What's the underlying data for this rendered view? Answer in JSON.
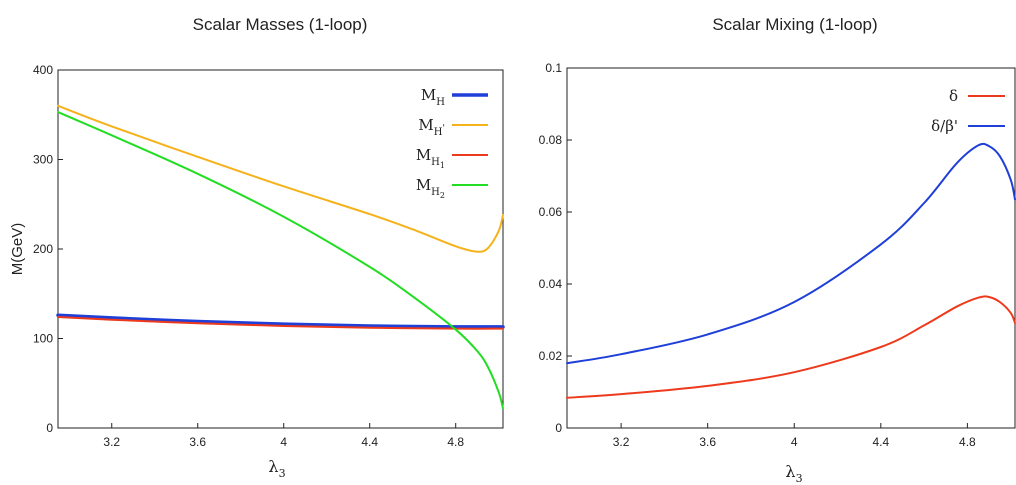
{
  "chart_data": [
    {
      "type": "line",
      "title": "Scalar Masses (1-loop)",
      "xlabel": "λ",
      "xlabel_sub": "3",
      "ylabel": "M(GeV)",
      "xlim": [
        2.95,
        5.02
      ],
      "ylim": [
        0,
        400
      ],
      "xticks": [
        {
          "v": 3.2,
          "label": "3.2"
        },
        {
          "v": 3.6,
          "label": "3.6"
        },
        {
          "v": 4.0,
          "label": "4"
        },
        {
          "v": 4.4,
          "label": "4.4"
        },
        {
          "v": 4.8,
          "label": "4.8"
        }
      ],
      "yticks": [
        {
          "v": 0,
          "label": "0"
        },
        {
          "v": 100,
          "label": "100"
        },
        {
          "v": 200,
          "label": "200"
        },
        {
          "v": 300,
          "label": "300"
        },
        {
          "v": 400,
          "label": "400"
        }
      ],
      "legend_position": "top-right",
      "series": [
        {
          "name": "M",
          "sub": "H",
          "sup": "",
          "subsub": "",
          "color": "#1f3fd9",
          "width": 3.5,
          "x": [
            2.95,
            3.2,
            3.6,
            4.0,
            4.4,
            4.8,
            5.02
          ],
          "y": [
            126,
            123,
            119,
            116,
            114,
            113,
            113
          ]
        },
        {
          "name": "M",
          "sub": "H",
          "sup": "'",
          "subsub": "",
          "color": "#f5b21b",
          "width": 2,
          "x": [
            2.95,
            3.2,
            3.6,
            4.0,
            4.4,
            4.6,
            4.8,
            4.9,
            4.95,
            5.0,
            5.02
          ],
          "y": [
            360,
            337,
            303,
            270,
            239,
            222,
            203,
            197,
            201,
            220,
            238
          ]
        },
        {
          "name": "M",
          "sub": "H",
          "sup": "",
          "subsub": "1",
          "color": "#ee3a1c",
          "width": 2,
          "x": [
            2.95,
            3.2,
            3.6,
            4.0,
            4.4,
            4.8,
            5.02
          ],
          "y": [
            124,
            121,
            117,
            114,
            112,
            111,
            111
          ]
        },
        {
          "name": "M",
          "sub": "H",
          "sup": "",
          "subsub": "2",
          "color": "#22dd22",
          "width": 2,
          "x": [
            2.95,
            3.2,
            3.6,
            4.0,
            4.4,
            4.6,
            4.8,
            4.9,
            4.95,
            5.0,
            5.02
          ],
          "y": [
            353,
            327,
            284,
            236,
            180,
            147,
            110,
            86,
            68,
            40,
            22
          ]
        }
      ]
    },
    {
      "type": "line",
      "title": "Scalar Mixing (1-loop)",
      "xlabel": "λ",
      "xlabel_sub": "3",
      "ylabel": "",
      "xlim": [
        2.95,
        5.02
      ],
      "ylim": [
        0,
        0.1
      ],
      "xticks": [
        {
          "v": 3.2,
          "label": "3.2"
        },
        {
          "v": 3.6,
          "label": "3.6"
        },
        {
          "v": 4.0,
          "label": "4"
        },
        {
          "v": 4.4,
          "label": "4.4"
        },
        {
          "v": 4.8,
          "label": "4.8"
        }
      ],
      "yticks": [
        {
          "v": 0,
          "label": "0"
        },
        {
          "v": 0.02,
          "label": "0.02"
        },
        {
          "v": 0.04,
          "label": "0.04"
        },
        {
          "v": 0.06,
          "label": "0.06"
        },
        {
          "v": 0.08,
          "label": "0.08"
        },
        {
          "v": 0.1,
          "label": "0.1"
        }
      ],
      "legend_position": "top-right",
      "series": [
        {
          "name": "δ",
          "sub": "",
          "sup": "",
          "subsub": "",
          "color": "#ee3a1c",
          "width": 2,
          "x": [
            2.95,
            3.2,
            3.6,
            4.0,
            4.4,
            4.6,
            4.75,
            4.85,
            4.9,
            4.95,
            5.0,
            5.02
          ],
          "y": [
            0.0084,
            0.0094,
            0.0117,
            0.0155,
            0.0225,
            0.0285,
            0.0337,
            0.0362,
            0.0364,
            0.035,
            0.032,
            0.0292
          ]
        },
        {
          "name": "δ/β'",
          "sub": "",
          "sup": "",
          "subsub": "",
          "color": "#1f3fd9",
          "width": 2,
          "x": [
            2.95,
            3.2,
            3.6,
            4.0,
            4.4,
            4.6,
            4.75,
            4.85,
            4.9,
            4.95,
            5.0,
            5.02
          ],
          "y": [
            0.018,
            0.0205,
            0.026,
            0.035,
            0.051,
            0.0625,
            0.0735,
            0.0785,
            0.0783,
            0.0755,
            0.069,
            0.0635
          ]
        }
      ]
    }
  ]
}
